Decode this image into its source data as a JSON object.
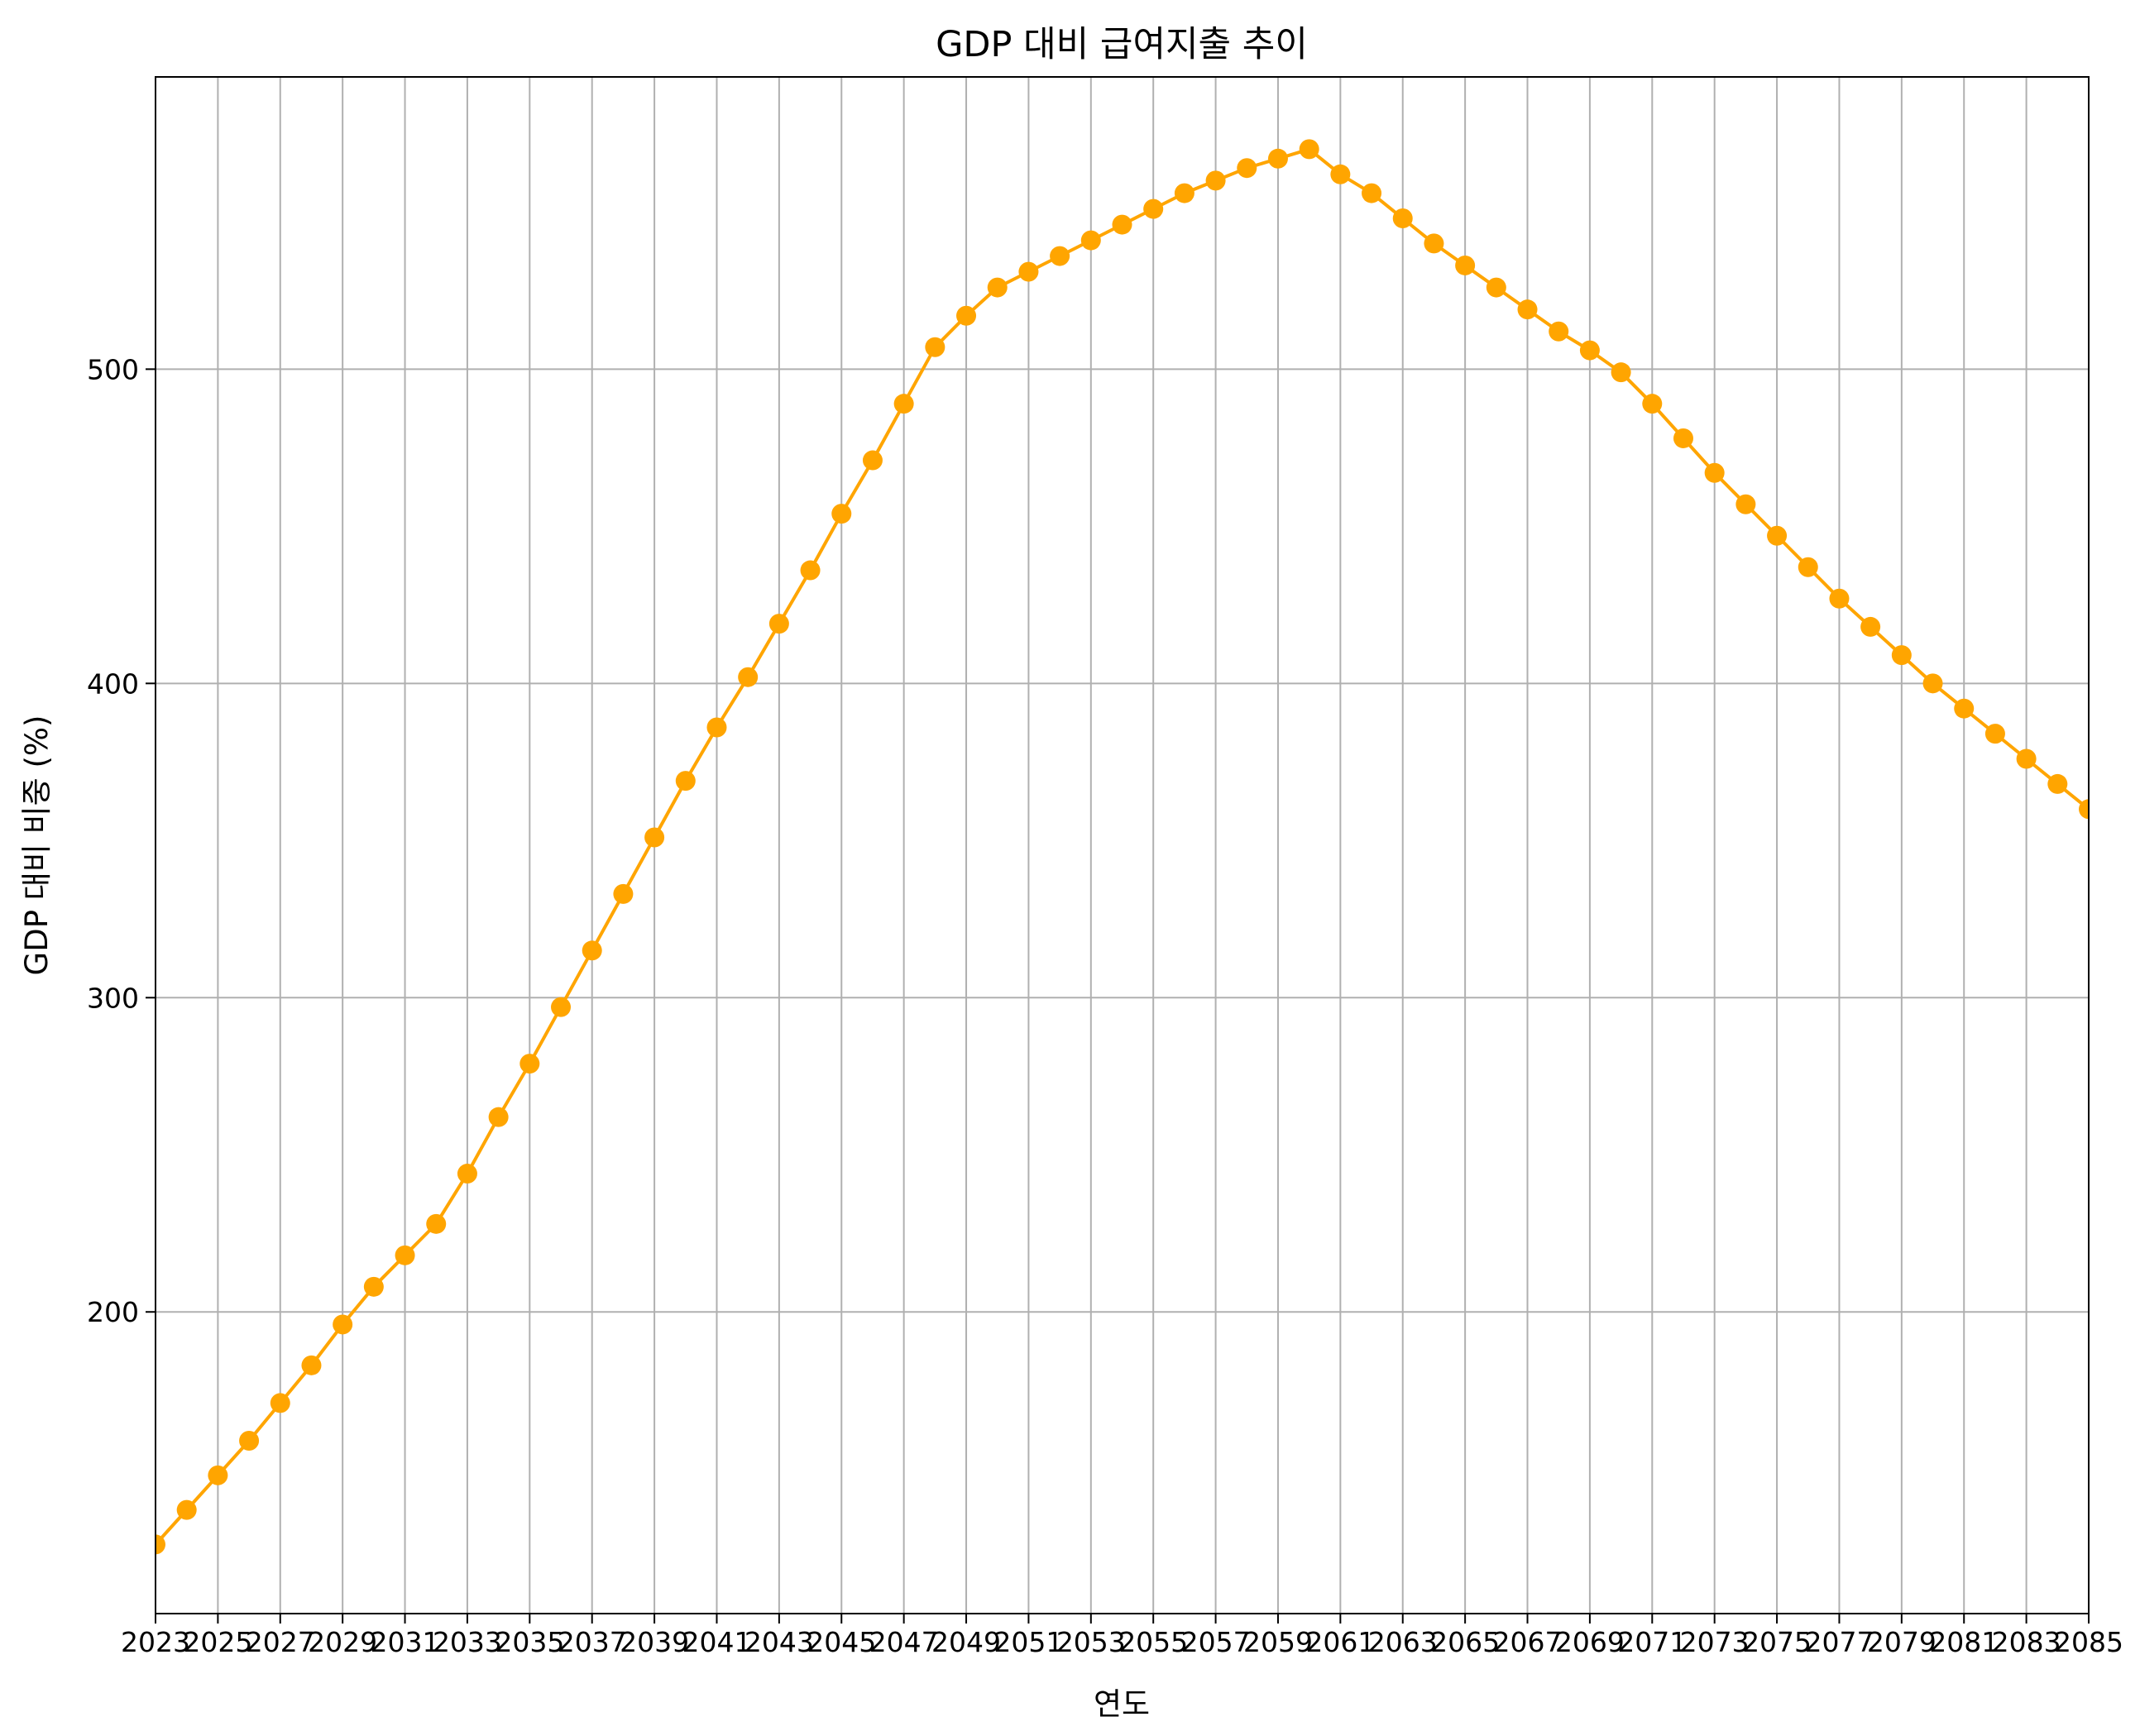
{
  "chart_data": {
    "type": "line",
    "title": "GDP 대비 급여지출 추이",
    "xlabel": "연도",
    "ylabel": "GDP 대비 비중 (%)",
    "xlim": [
      2023,
      2085
    ],
    "ylim": [
      104,
      593
    ],
    "xticks": [
      2023,
      2025,
      2027,
      2029,
      2031,
      2033,
      2035,
      2037,
      2039,
      2041,
      2043,
      2045,
      2047,
      2049,
      2051,
      2053,
      2055,
      2057,
      2059,
      2061,
      2063,
      2065,
      2067,
      2069,
      2071,
      2073,
      2075,
      2077,
      2079,
      2081,
      2083,
      2085
    ],
    "yticks": [
      200,
      300,
      400,
      500
    ],
    "grid": true,
    "line_color": "#FFA500",
    "marker": "circle",
    "series": [
      {
        "x": [
          2023,
          2024,
          2025,
          2026,
          2027,
          2028,
          2029,
          2030,
          2031,
          2032,
          2033,
          2034,
          2035,
          2036,
          2037,
          2038,
          2039,
          2040,
          2041,
          2042,
          2043,
          2044,
          2045,
          2046,
          2047,
          2048,
          2049,
          2050,
          2051,
          2052,
          2053,
          2054,
          2055,
          2056,
          2057,
          2058,
          2059,
          2060,
          2061,
          2062,
          2063,
          2064,
          2065,
          2066,
          2067,
          2068,
          2069,
          2070,
          2071,
          2072,
          2073,
          2074,
          2075,
          2076,
          2077,
          2078,
          2079,
          2080,
          2081,
          2082,
          2083,
          2084,
          2085
        ],
        "values": [
          126,
          137,
          148,
          159,
          171,
          183,
          196,
          208,
          218,
          228,
          244,
          262,
          279,
          297,
          315,
          333,
          351,
          369,
          386,
          402,
          419,
          436,
          454,
          471,
          489,
          507,
          517,
          526,
          531,
          536,
          541,
          546,
          551,
          556,
          560,
          564,
          567,
          570,
          562,
          556,
          548,
          540,
          533,
          526,
          519,
          512,
          506,
          499,
          489,
          478,
          467,
          457,
          447,
          437,
          427,
          418,
          409,
          400,
          392,
          384,
          376,
          368,
          360
        ]
      }
    ]
  }
}
